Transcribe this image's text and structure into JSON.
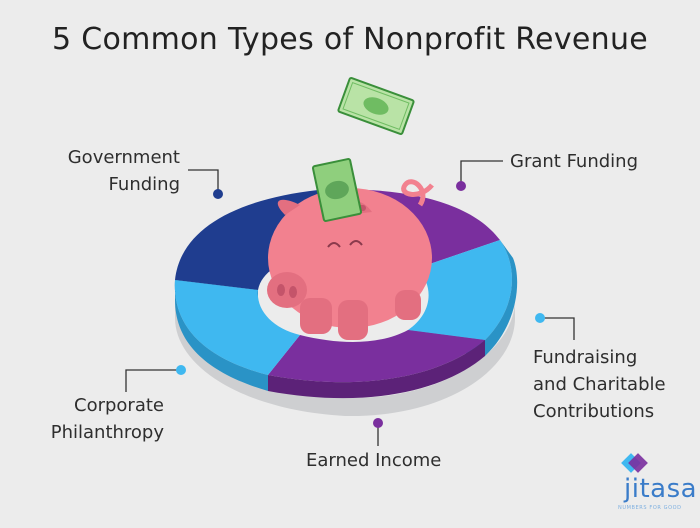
{
  "title": "5 Common Types of Nonprofit Revenue",
  "labels": {
    "government": [
      "Government",
      "Funding"
    ],
    "grant": [
      "Grant Funding"
    ],
    "fundraising": [
      "Fundraising",
      "and Charitable",
      "Contributions"
    ],
    "corporate": [
      "Corporate",
      "Philanthropy"
    ],
    "earned": [
      "Earned Income"
    ]
  },
  "segments": [
    {
      "label_key": "government",
      "color": "#1f3d8f"
    },
    {
      "label_key": "grant",
      "color": "#7a2f9e"
    },
    {
      "label_key": "fundraising",
      "color": "#3fb8f0"
    },
    {
      "label_key": "earned",
      "color": "#7a2f9e"
    },
    {
      "label_key": "corporate",
      "color": "#3fb8f0"
    }
  ],
  "colors": {
    "navy": "#1f3d8f",
    "purple": "#7a2f9e",
    "sky": "#3fb8f0",
    "pig": "#f2818f",
    "money": "#8fcf7d"
  },
  "icons": [
    "piggy-bank-icon",
    "dollar-bill-icon",
    "jitasa-logo-icon"
  ],
  "logo": {
    "name": "jitasa",
    "tagline": "NUMBERS FOR GOOD"
  }
}
